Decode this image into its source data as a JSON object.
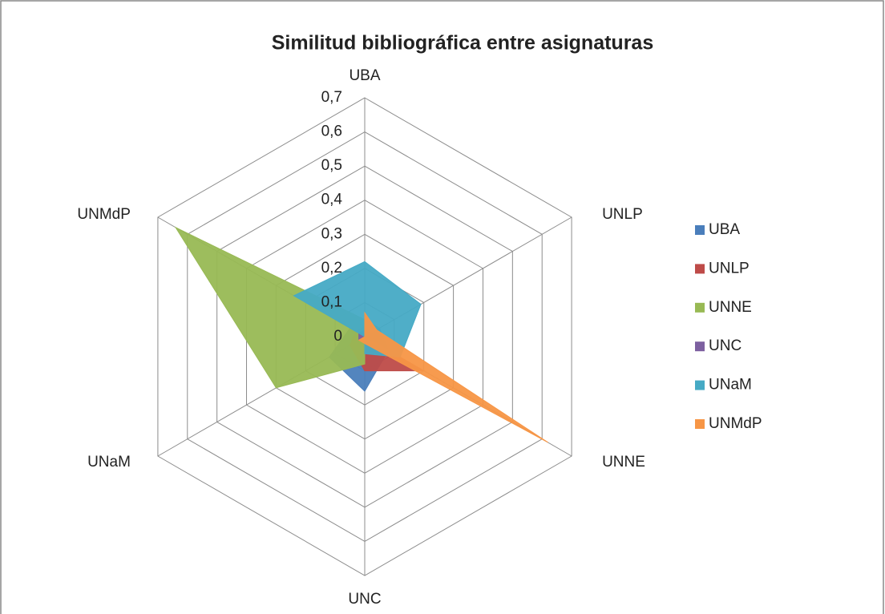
{
  "chart_data": {
    "type": "radar",
    "title": "Similitud bibliográfica entre asignaturas",
    "categories": [
      "UBA",
      "UNLP",
      "UNNE",
      "UNC",
      "UNaM",
      "UNMdP"
    ],
    "series": [
      {
        "name": "UBA",
        "color": "#4a7ebb",
        "values": [
          0,
          0.05,
          0.08,
          0.16,
          0.12,
          0.05
        ]
      },
      {
        "name": "UNLP",
        "color": "#be4b48",
        "values": [
          0.03,
          0,
          0.2,
          0.1,
          0.05,
          0.03
        ]
      },
      {
        "name": "UNNE",
        "color": "#98b954",
        "values": [
          0.05,
          0.05,
          0,
          0.08,
          0.3,
          0.64
        ]
      },
      {
        "name": "UNC",
        "color": "#7d60a0",
        "values": [
          0.02,
          0.02,
          0.02,
          0,
          0.02,
          0.02
        ]
      },
      {
        "name": "UNaM",
        "color": "#46aac5",
        "values": [
          0.22,
          0.19,
          0.12,
          0.05,
          0,
          0.24
        ]
      },
      {
        "name": "UNMdP",
        "color": "#f79646",
        "values": [
          0.07,
          0.04,
          0.62,
          0.02,
          0.02,
          0
        ]
      }
    ],
    "ylim": [
      0,
      0.7
    ],
    "yticks": [
      0,
      {
        "value": 0.1,
        "label": "0,1"
      },
      {
        "value": 0.2,
        "label": "0,2"
      },
      {
        "value": 0.3,
        "label": "0,3"
      },
      {
        "value": 0.4,
        "label": "0,4"
      },
      {
        "value": 0.5,
        "label": "0,5"
      },
      {
        "value": 0.6,
        "label": "0,6"
      },
      {
        "value": 0.7,
        "label": "0,7"
      }
    ],
    "legend": "right",
    "grid": true
  }
}
